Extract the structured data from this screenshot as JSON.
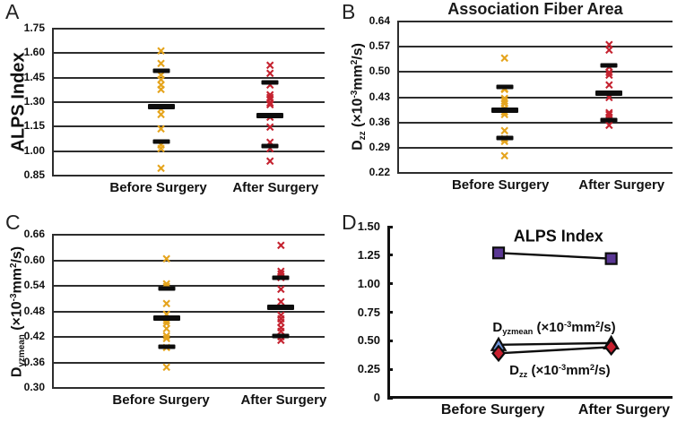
{
  "page": {
    "background": "#ffffff"
  },
  "colors": {
    "before_marker": "#E5A41D",
    "after_marker": "#C52330",
    "mean_bar": "#0d0d0d",
    "gridline": "#2d2d2d",
    "alps_square": "#5A3794",
    "dyzmean_triangle": "#6E93D8",
    "dzz_diamond": "#C8202F",
    "line": "#0d0d0d"
  },
  "chart_data": [
    {
      "type": "scatter",
      "panel_label": "A",
      "title": "",
      "ylabel_rich": [
        [
          "ALPS Index"
        ]
      ],
      "ylim": [
        0.85,
        1.75
      ],
      "grid": true,
      "yticks": [
        {
          "v": 1.75,
          "label": "1.75"
        },
        {
          "v": 1.6,
          "label": "1.60"
        },
        {
          "v": 1.45,
          "label": "1.45"
        },
        {
          "v": 1.3,
          "label": "1.30"
        },
        {
          "v": 1.15,
          "label": "1.15"
        },
        {
          "v": 1.0,
          "label": "1.00"
        },
        {
          "v": 0.85,
          "label": "0.85"
        }
      ],
      "categories": [
        "Before Surgery",
        "After Surgery"
      ],
      "col_x": [
        0.4,
        0.8
      ],
      "cat_x": [
        0.39,
        0.82
      ],
      "groups": [
        {
          "name": "Before Surgery",
          "color": "#E5A41D",
          "points": [
            1.61,
            1.53,
            1.46,
            1.43,
            1.4,
            1.37,
            1.25,
            1.22,
            1.13,
            1.03,
            1.01,
            0.89
          ],
          "bars": [
            {
              "v": 1.49,
              "wide": false
            },
            {
              "v": 1.275,
              "wide": true
            },
            {
              "v": 1.06,
              "wide": false
            }
          ]
        },
        {
          "name": "After Surgery",
          "color": "#C52330",
          "points": [
            1.52,
            1.47,
            1.4,
            1.34,
            1.32,
            1.31,
            1.29,
            1.28,
            1.2,
            1.14,
            1.05,
            1.01,
            0.93
          ],
          "bars": [
            {
              "v": 1.42,
              "wide": false
            },
            {
              "v": 1.22,
              "wide": true
            },
            {
              "v": 1.03,
              "wide": false
            }
          ]
        }
      ]
    },
    {
      "type": "scatter",
      "panel_label": "B",
      "title": "Association Fiber Area",
      "ylabel_rich": [
        [
          "D"
        ],
        [
          "zz",
          "sub"
        ],
        [
          " (×10",
          "n"
        ],
        [
          "-3",
          "sup"
        ],
        [
          "mm",
          "n"
        ],
        [
          "2",
          "sup"
        ],
        [
          "/s)",
          "n"
        ]
      ],
      "ylim": [
        0.22,
        0.64
      ],
      "grid": true,
      "yticks": [
        {
          "v": 0.64,
          "label": "0.64"
        },
        {
          "v": 0.57,
          "label": "0.57"
        },
        {
          "v": 0.5,
          "label": "0.50"
        },
        {
          "v": 0.43,
          "label": "0.43"
        },
        {
          "v": 0.36,
          "label": "0.36"
        },
        {
          "v": 0.29,
          "label": "0.29"
        },
        {
          "v": 0.22,
          "label": "0.22"
        }
      ],
      "categories": [
        "Before Surgery",
        "After Surgery"
      ],
      "col_x": [
        0.39,
        0.77
      ],
      "cat_x": [
        0.375,
        0.815
      ],
      "groups": [
        {
          "name": "Before Surgery",
          "color": "#E5A41D",
          "points": [
            0.535,
            0.452,
            0.448,
            0.425,
            0.417,
            0.41,
            0.397,
            0.386,
            0.378,
            0.335,
            0.312,
            0.305,
            0.264
          ],
          "bars": [
            {
              "v": 0.458,
              "wide": false
            },
            {
              "v": 0.394,
              "wide": true
            },
            {
              "v": 0.318,
              "wide": false
            }
          ]
        },
        {
          "name": "After Surgery",
          "color": "#C52330",
          "points": [
            0.572,
            0.557,
            0.512,
            0.497,
            0.489,
            0.461,
            0.427,
            0.384,
            0.379,
            0.371,
            0.349
          ],
          "bars": [
            {
              "v": 0.518,
              "wide": false
            },
            {
              "v": 0.441,
              "wide": true
            },
            {
              "v": 0.367,
              "wide": false
            }
          ]
        }
      ]
    },
    {
      "type": "scatter",
      "panel_label": "C",
      "title": "",
      "ylabel_rich": [
        [
          "D"
        ],
        [
          "yzmean",
          "sub"
        ],
        [
          " (×10",
          "n"
        ],
        [
          "-3",
          "sup"
        ],
        [
          "mm",
          "n"
        ],
        [
          "2",
          "sup"
        ],
        [
          "/s)",
          "n"
        ]
      ],
      "ylim": [
        0.3,
        0.66
      ],
      "grid": true,
      "yticks": [
        {
          "v": 0.66,
          "label": "0.66"
        },
        {
          "v": 0.6,
          "label": "0.60"
        },
        {
          "v": 0.54,
          "label": "0.54"
        },
        {
          "v": 0.48,
          "label": "0.48"
        },
        {
          "v": 0.42,
          "label": "0.42"
        },
        {
          "v": 0.36,
          "label": "0.36"
        },
        {
          "v": 0.3,
          "label": "0.30"
        }
      ],
      "categories": [
        "Before Surgery",
        "After Surgery"
      ],
      "col_x": [
        0.42,
        0.84
      ],
      "cat_x": [
        0.4,
        0.85
      ],
      "groups": [
        {
          "name": "Before Surgery",
          "color": "#E5A41D",
          "points": [
            0.601,
            0.543,
            0.536,
            0.495,
            0.47,
            0.456,
            0.449,
            0.437,
            0.421,
            0.414,
            0.392,
            0.347
          ],
          "bars": [
            {
              "v": 0.533,
              "wide": false
            },
            {
              "v": 0.464,
              "wide": true
            },
            {
              "v": 0.397,
              "wide": false
            }
          ]
        },
        {
          "name": "After Surgery",
          "color": "#C52330",
          "points": [
            0.632,
            0.572,
            0.565,
            0.557,
            0.53,
            0.5,
            0.468,
            0.459,
            0.452,
            0.44,
            0.431,
            0.417,
            0.409
          ],
          "bars": [
            {
              "v": 0.558,
              "wide": false
            },
            {
              "v": 0.49,
              "wide": true
            },
            {
              "v": 0.423,
              "wide": false
            }
          ]
        }
      ]
    },
    {
      "type": "line",
      "panel_label": "D",
      "title": "",
      "ylim": [
        0,
        1.5
      ],
      "grid": false,
      "axis_ticks": true,
      "yticks": [
        {
          "v": 1.5,
          "label": "1.50"
        },
        {
          "v": 1.25,
          "label": "1.25"
        },
        {
          "v": 1.0,
          "label": "1.00"
        },
        {
          "v": 0.75,
          "label": "0.75"
        },
        {
          "v": 0.5,
          "label": "0.50"
        },
        {
          "v": 0.25,
          "label": "0.25"
        },
        {
          "v": 0,
          "label": "0"
        }
      ],
      "categories": [
        "Before Surgery",
        "After Surgery"
      ],
      "col_x": [
        0.39,
        0.785
      ],
      "cat_x": [
        0.37,
        0.83
      ],
      "series": [
        {
          "name": "ALPS Index",
          "marker": "square",
          "fill": "#5A3794",
          "values": [
            1.27,
            1.22
          ]
        },
        {
          "name": "Dyzmean",
          "marker": "triangle",
          "fill": "#6E93D8",
          "values": [
            0.465,
            0.48
          ]
        },
        {
          "name": "Dzz",
          "marker": "diamond",
          "fill": "#C8202F",
          "values": [
            0.39,
            0.445
          ]
        }
      ],
      "annotations": [
        {
          "rich": [
            [
              "ALPS Index"
            ]
          ],
          "x": 0.6,
          "v": 1.415,
          "size": 18
        },
        {
          "rich": [
            [
              "D"
            ],
            [
              "yzmean",
              "sub"
            ],
            [
              " (×10",
              "n"
            ],
            [
              "-3",
              "sup"
            ],
            [
              "mm",
              "n"
            ],
            [
              "2",
              "sup"
            ],
            [
              "/s)",
              "n"
            ]
          ],
          "x": 0.585,
          "v": 0.615,
          "size": 15
        },
        {
          "rich": [
            [
              "D"
            ],
            [
              "zz",
              "sub"
            ],
            [
              " (×10",
              "n"
            ],
            [
              "-3",
              "sup"
            ],
            [
              "mm",
              "n"
            ],
            [
              "2",
              "sup"
            ],
            [
              "/s)",
              "n"
            ]
          ],
          "x": 0.605,
          "v": 0.235,
          "size": 15
        }
      ]
    }
  ]
}
